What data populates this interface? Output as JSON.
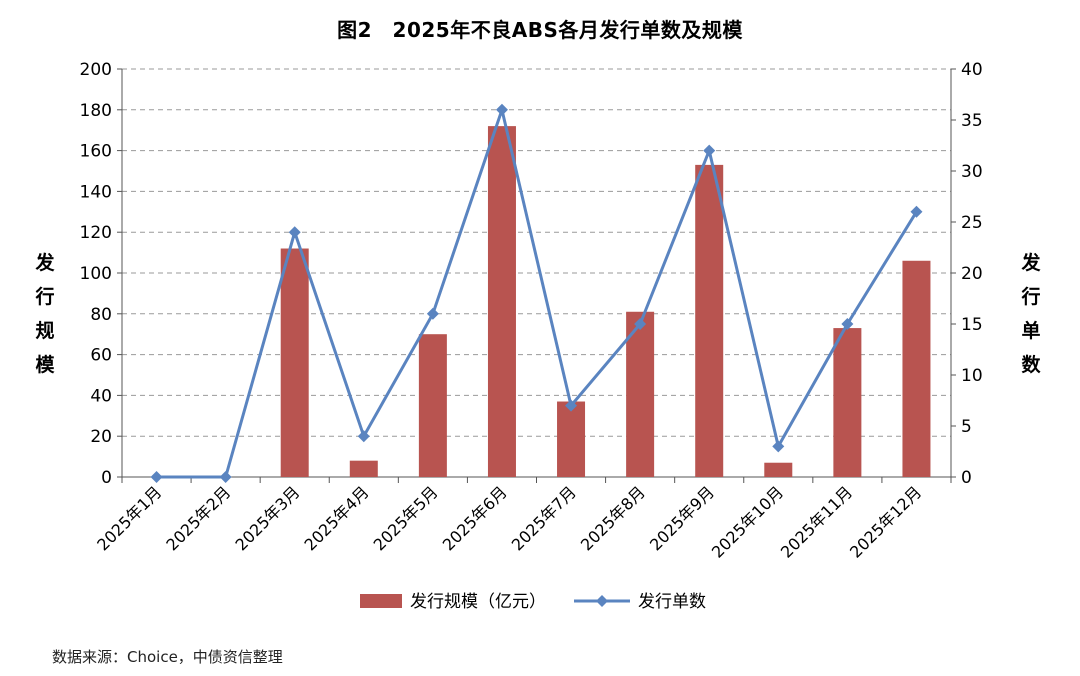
{
  "title": "图2　2025年不良ABS各月发行单数及规模",
  "source": "数据来源：Choice，中债资信整理",
  "chart_data": {
    "type": "bar",
    "categories": [
      "2025年1月",
      "2025年2月",
      "2025年3月",
      "2025年4月",
      "2025年5月",
      "2025年6月",
      "2025年7月",
      "2025年8月",
      "2025年9月",
      "2025年10月",
      "2025年11月",
      "2025年12月"
    ],
    "series": [
      {
        "name": "发行规模（亿元）",
        "type": "bar",
        "axis": "left",
        "color": "#b85450",
        "values": [
          0,
          0,
          112,
          8,
          70,
          172,
          37,
          81,
          153,
          7,
          73,
          106
        ]
      },
      {
        "name": "发行单数",
        "type": "line",
        "axis": "right",
        "color": "#5a84c0",
        "values": [
          0,
          0,
          24,
          4,
          16,
          36,
          7,
          15,
          32,
          3,
          15,
          26
        ]
      }
    ],
    "ylabel": "发行规模",
    "y2label": "发行单数",
    "ylim": [
      0,
      200
    ],
    "y2lim": [
      0,
      40
    ],
    "yticks": [
      "0",
      "20",
      "40",
      "60",
      "80",
      "100",
      "120",
      "140",
      "160",
      "180",
      "200"
    ],
    "y2ticks": [
      "0",
      "5",
      "10",
      "15",
      "20",
      "25",
      "30",
      "35",
      "40"
    ],
    "grid": true,
    "legend": "bottom"
  }
}
